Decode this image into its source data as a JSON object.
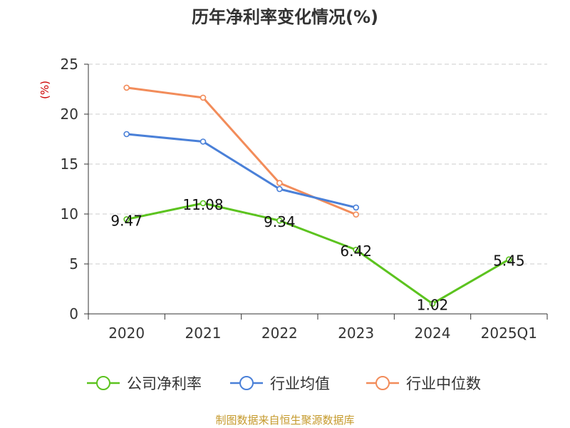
{
  "chart_data": {
    "type": "line",
    "title": "历年净利率变化情况(%)",
    "ylabel": "(%)",
    "xlabel": "",
    "categories": [
      "2020",
      "2021",
      "2022",
      "2023",
      "2024",
      "2025Q1"
    ],
    "ylim": [
      0,
      25
    ],
    "yticks": [
      0,
      5,
      10,
      15,
      20,
      25
    ],
    "grid": true,
    "legend_position": "bottom",
    "series": [
      {
        "name": "公司净利率",
        "color": "#5cc31f",
        "values": [
          9.47,
          11.08,
          9.34,
          6.42,
          1.02,
          5.45
        ],
        "labels": [
          "9.47",
          "11.08",
          "9.34",
          "6.42",
          "1.02",
          "5.45"
        ]
      },
      {
        "name": "行业均值",
        "color": "#4a80d8",
        "values": [
          18.0,
          17.25,
          12.5,
          10.65,
          null,
          null
        ]
      },
      {
        "name": "行业中位数",
        "color": "#f28c5a",
        "values": [
          22.65,
          21.65,
          13.1,
          9.95,
          null,
          null
        ]
      }
    ]
  },
  "footer": {
    "source": "制图数据来自恒生聚源数据库"
  }
}
